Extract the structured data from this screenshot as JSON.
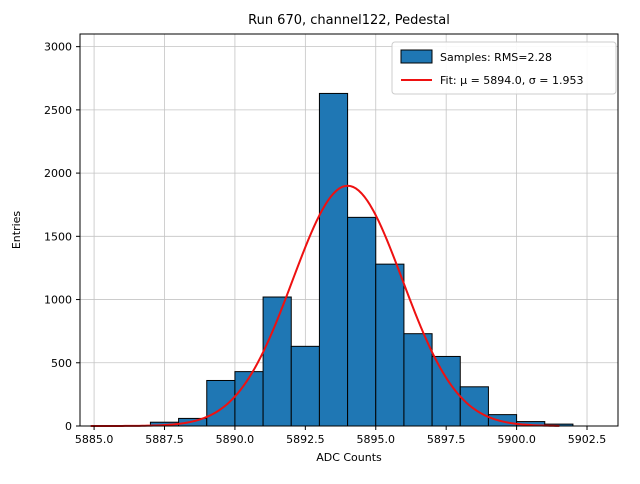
{
  "chart_data": {
    "type": "bar",
    "title": "Run 670, channel122, Pedestal",
    "xlabel": "ADC Counts",
    "ylabel": "Entries",
    "xlim": [
      5884.5,
      5903.6
    ],
    "ylim": [
      0,
      3100
    ],
    "xtick_values": [
      5885.0,
      5887.5,
      5890.0,
      5892.5,
      5895.0,
      5897.5,
      5900.0,
      5902.5
    ],
    "xtick_labels": [
      "5885.0",
      "5887.5",
      "5890.0",
      "5892.5",
      "5895.0",
      "5897.5",
      "5900.0",
      "5902.5"
    ],
    "ytick_values": [
      0,
      500,
      1000,
      1500,
      2000,
      2500,
      3000
    ],
    "ytick_labels": [
      "0",
      "500",
      "1000",
      "1500",
      "2000",
      "2500",
      "3000"
    ],
    "grid": true,
    "legend_position": "top-right",
    "histogram": {
      "bin_start": 5887.0,
      "bin_width": 1.0,
      "counts": [
        30,
        60,
        360,
        430,
        1020,
        630,
        2630,
        1650,
        1280,
        730,
        550,
        310,
        90,
        35,
        15
      ]
    },
    "fit": {
      "mu": 5894.0,
      "sigma": 1.953,
      "amplitude": 1900,
      "x_start": 5884.9,
      "x_end": 5901.6
    },
    "legend": {
      "entries": [
        {
          "label": "Samples: RMS=2.28",
          "marker": "patch"
        },
        {
          "label": "Fit: μ = 5894.0, σ = 1.953",
          "marker": "line"
        }
      ]
    },
    "colors": {
      "bar_fill": "#1f77b4",
      "bar_edge": "#000000",
      "fit_line": "#ee1111",
      "grid": "#c4c4c4",
      "legend_border": "#cccccc"
    }
  }
}
